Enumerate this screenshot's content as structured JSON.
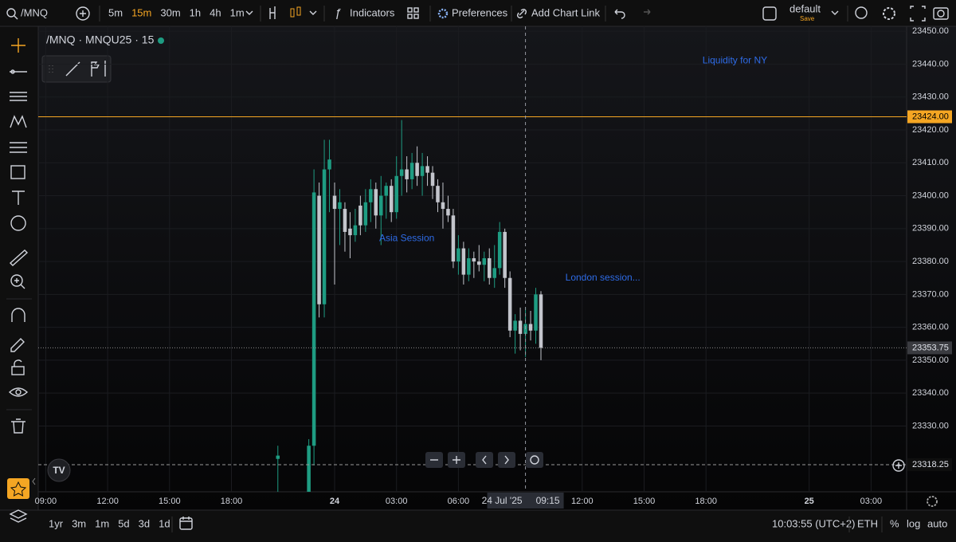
{
  "toolbar": {
    "symbol": "/MNQ",
    "intervals": [
      "5m",
      "15m",
      "30m",
      "1h",
      "4h",
      "1m"
    ],
    "active_interval": 1,
    "indicators": "Indicators",
    "preferences": "Preferences",
    "add_chart_link": "Add Chart Link",
    "layout": "default",
    "layout_status": "Save"
  },
  "chart_data": {
    "type": "candlestick",
    "title": "/MNQ · MNQU25 · 15",
    "x": [
      -3.75,
      -2.25,
      -2,
      -1.75,
      -1.5,
      -1.25,
      0,
      0.25,
      0.5,
      0.75,
      1,
      1.25,
      1.5,
      1.75,
      2,
      2.25,
      2.5,
      2.75,
      3,
      3.25,
      3.5,
      3.75,
      4,
      4.25,
      4.5,
      4.75,
      5,
      5.25,
      5.5,
      5.75,
      6,
      6.25,
      6.5,
      6.75,
      7,
      7.25,
      7.5,
      7.75,
      8,
      8.25,
      8.5,
      8.75,
      9,
      9.25,
      9.5,
      9.75,
      10
    ],
    "open": [
      23320,
      23305,
      23324,
      23400,
      23367,
      23408,
      23400,
      23396,
      23396,
      23390,
      23388,
      23397,
      23391,
      23398,
      23402,
      23394,
      23400,
      23403,
      23395,
      23406,
      23408,
      23405,
      23410,
      23406,
      23409,
      23407,
      23403,
      23398,
      23396,
      23394,
      23380,
      23384,
      23376,
      23381,
      23380,
      23379,
      23381,
      23375,
      23378,
      23389,
      23375,
      23359,
      23362,
      23358,
      23361,
      23359,
      23370
    ],
    "high": [
      23324,
      23326,
      23408,
      23404,
      23417,
      23417,
      23404,
      23402,
      23398,
      23395,
      23396,
      23400,
      23402,
      23405,
      23404,
      23406,
      23404,
      23405,
      23412,
      23423,
      23412,
      23413,
      23415,
      23413,
      23412,
      23409,
      23405,
      23404,
      23400,
      23396,
      23388,
      23386,
      23384,
      23383,
      23385,
      23383,
      23384,
      23385,
      23392,
      23390,
      23377,
      23364,
      23366,
      23366,
      23365,
      23372,
      23371
    ],
    "low": [
      23305,
      23300,
      23318,
      23363,
      23363,
      23395,
      23373,
      23385,
      23383,
      23381,
      23386,
      23388,
      23389,
      23392,
      23390,
      23385,
      23393,
      23392,
      23393,
      23400,
      23401,
      23402,
      23403,
      23400,
      23403,
      23399,
      23395,
      23390,
      23392,
      23378,
      23376,
      23373,
      23374,
      23375,
      23377,
      23374,
      23373,
      23372,
      23376,
      23372,
      23357,
      23352,
      23353,
      23351,
      23356,
      23355,
      23350
    ],
    "close": [
      23321,
      23324,
      23401,
      23367,
      23408,
      23411,
      23396,
      23398,
      23389,
      23388,
      23391,
      23391,
      23398,
      23402,
      23394,
      23400,
      23403,
      23395,
      23406,
      23408,
      23405,
      23410,
      23406,
      23409,
      23407,
      23403,
      23398,
      23396,
      23394,
      23380,
      23384,
      23376,
      23381,
      23380,
      23379,
      23381,
      23375,
      23378,
      23389,
      23375,
      23359,
      23362,
      23358,
      23361,
      23359,
      23370,
      23353.75
    ],
    "up_color": "#1e9c82",
    "down_color": "#c3c5cc",
    "ylim": [
      23310,
      23451.5
    ],
    "yticks": [
      {
        "value": 23330,
        "label": "23330.00"
      },
      {
        "value": 23340,
        "label": "23340.00"
      },
      {
        "value": 23350,
        "label": "23350.00"
      },
      {
        "value": 23360,
        "label": "23360.00"
      },
      {
        "value": 23370,
        "label": "23370.00"
      },
      {
        "value": 23380,
        "label": "23380.00"
      },
      {
        "value": 23390,
        "label": "23390.00"
      },
      {
        "value": 23400,
        "label": "23400.00"
      },
      {
        "value": 23410,
        "label": "23410.00"
      },
      {
        "value": 23420,
        "label": "23420.00"
      },
      {
        "value": 23430,
        "label": "23430.00"
      },
      {
        "value": 23440,
        "label": "23440.00"
      },
      {
        "value": 23450,
        "label": "23450.00"
      }
    ],
    "xticks": [
      {
        "value": -15,
        "label": "09:00"
      },
      {
        "value": -12,
        "label": "12:00"
      },
      {
        "value": -9,
        "label": "15:00"
      },
      {
        "value": -6,
        "label": "18:00"
      },
      {
        "value": 0,
        "label": "24"
      },
      {
        "value": 3,
        "label": "03:00"
      },
      {
        "value": 6,
        "label": "06:00"
      },
      {
        "value": 12,
        "label": "12:00"
      },
      {
        "value": 15,
        "label": "15:00"
      },
      {
        "value": 18,
        "label": "18:00"
      },
      {
        "value": 24,
        "label": "25"
      },
      {
        "value": 27,
        "label": "03:00"
      }
    ],
    "grid": true,
    "price_lines": [
      {
        "value": 23424,
        "label": "23424.00",
        "color": "#f5a623",
        "style": "solid"
      },
      {
        "value": 23353.75,
        "label": "23353.75",
        "color": "#8a8a8a",
        "style": "dotted"
      },
      {
        "value": 23318.25,
        "label": "23318.25",
        "color": "#9a9a9a",
        "style": "dashed"
      }
    ],
    "crosshair": {
      "x": 9.25,
      "date_label": "24 Jul '25",
      "time_label": "09:15"
    },
    "annotations": [
      {
        "text": "Liquidity for NY",
        "x": 19.4,
        "y": 23441
      },
      {
        "text": "Asia Session",
        "x": 3.5,
        "y": 23387
      },
      {
        "text": "London session...",
        "x": 13,
        "y": 23375
      }
    ]
  },
  "bottom_bar": {
    "ranges": [
      "1yr",
      "3m",
      "1m",
      "5d",
      "3d",
      "1d"
    ],
    "clock": "10:03:55 (UTC+2)",
    "session": "ETH",
    "percent": "%",
    "log": "log",
    "auto": "auto"
  }
}
